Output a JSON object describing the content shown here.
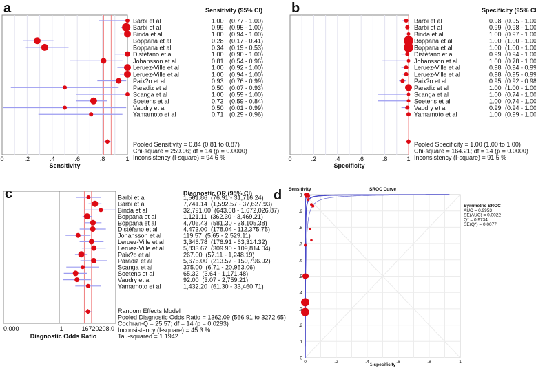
{
  "colors": {
    "marker": "#dd0a14",
    "ci_line": "#9c9cf0",
    "pooled_line": "#f08080",
    "grid": "#e4e4f0",
    "sroc_curve": "#4a4ac8"
  },
  "chart_data": [
    {
      "type": "forest",
      "panel_letter": "a",
      "title": "Sensitivity (95% CI)",
      "xlabel": "Sensitivity",
      "xlim": [
        0,
        1
      ],
      "ticks": [
        "0",
        ".2",
        ".4",
        ".6",
        ".8",
        "1"
      ],
      "studies": [
        {
          "name": "Barbi et al",
          "value": 1.0,
          "low": 0.77,
          "high": 1.0,
          "value_text": "1.00",
          "ci_text": "(0.77 - 1.00)"
        },
        {
          "name": "Barbi et al",
          "value": 0.99,
          "low": 0.95,
          "high": 1.0,
          "value_text": "0.99",
          "ci_text": "(0.95 - 1.00)"
        },
        {
          "name": "Binda et al",
          "value": 1.0,
          "low": 0.94,
          "high": 1.0,
          "value_text": "1.00",
          "ci_text": "(0.94 - 1.00)"
        },
        {
          "name": "Boppana et al",
          "value": 0.28,
          "low": 0.17,
          "high": 0.41,
          "value_text": "0.28",
          "ci_text": "(0.17 - 0.41)"
        },
        {
          "name": "Boppana et al",
          "value": 0.34,
          "low": 0.19,
          "high": 0.53,
          "value_text": "0.34",
          "ci_text": "(0.19 - 0.53)"
        },
        {
          "name": "Distéfano et al",
          "value": 1.0,
          "low": 0.9,
          "high": 1.0,
          "value_text": "1.00",
          "ci_text": "(0.90 - 1.00)"
        },
        {
          "name": "Johansson et al",
          "value": 0.81,
          "low": 0.54,
          "high": 0.96,
          "value_text": "0.81",
          "ci_text": "(0.54 - 0.96)"
        },
        {
          "name": "Leruez-Ville et al",
          "value": 1.0,
          "low": 0.92,
          "high": 1.0,
          "value_text": "1.00",
          "ci_text": "(0.92 - 1.00)"
        },
        {
          "name": "Leruez-Ville et al",
          "value": 1.0,
          "low": 0.94,
          "high": 1.0,
          "value_text": "1.00",
          "ci_text": "(0.94 - 1.00)"
        },
        {
          "name": "Paix?o et al",
          "value": 0.93,
          "low": 0.76,
          "high": 0.99,
          "value_text": "0.93",
          "ci_text": "(0.76 - 0.99)"
        },
        {
          "name": "Paradiz et al",
          "value": 0.5,
          "low": 0.07,
          "high": 0.93,
          "value_text": "0.50",
          "ci_text": "(0.07 - 0.93)"
        },
        {
          "name": "Scanga et al",
          "value": 1.0,
          "low": 0.59,
          "high": 1.0,
          "value_text": "1.00",
          "ci_text": "(0.59 - 1.00)"
        },
        {
          "name": "Soetens et al",
          "value": 0.73,
          "low": 0.59,
          "high": 0.84,
          "value_text": "0.73",
          "ci_text": "(0.59 - 0.84)"
        },
        {
          "name": "Vaudry et al",
          "value": 0.5,
          "low": 0.01,
          "high": 0.99,
          "value_text": "0.50",
          "ci_text": "(0.01 - 0.99)"
        },
        {
          "name": "Yamamoto et al",
          "value": 0.71,
          "low": 0.29,
          "high": 0.96,
          "value_text": "0.71",
          "ci_text": "(0.29 - 0.96)"
        }
      ],
      "pooled": {
        "value": 0.84,
        "low": 0.81,
        "high": 0.87
      },
      "summary": [
        "Pooled Sensitivity = 0.84 (0.81 to 0.87)",
        "Chi-square = 259.96; df =  14 (p = 0.0000)",
        "Inconsistency (I-square) = 94.6 %"
      ]
    },
    {
      "type": "forest",
      "panel_letter": "b",
      "title": "Specificity (95% CI)",
      "xlabel": "Specificity",
      "xlim": [
        0,
        1
      ],
      "ticks": [
        "0",
        ".2",
        ".4",
        ".6",
        ".8",
        "1"
      ],
      "studies": [
        {
          "name": "Barbi et al",
          "value": 0.98,
          "low": 0.95,
          "high": 1.0,
          "value_text": "0.98",
          "ci_text": "(0.95 - 1.00)"
        },
        {
          "name": "Barbi et al",
          "value": 0.99,
          "low": 0.98,
          "high": 1.0,
          "value_text": "0.99",
          "ci_text": "(0.98 - 1.00)"
        },
        {
          "name": "Binda et al",
          "value": 1.0,
          "low": 0.97,
          "high": 1.0,
          "value_text": "1.00",
          "ci_text": "(0.97 - 1.00)"
        },
        {
          "name": "Boppana et al",
          "value": 1.0,
          "low": 1.0,
          "high": 1.0,
          "value_text": "1.00",
          "ci_text": "(1.00 - 1.00)"
        },
        {
          "name": "Boppana et al",
          "value": 1.0,
          "low": 1.0,
          "high": 1.0,
          "value_text": "1.00",
          "ci_text": "(1.00 - 1.00)"
        },
        {
          "name": "Distéfano et al",
          "value": 0.99,
          "low": 0.94,
          "high": 1.0,
          "value_text": "0.99",
          "ci_text": "(0.94 - 1.00)"
        },
        {
          "name": "Johansson et al",
          "value": 1.0,
          "low": 0.78,
          "high": 1.0,
          "value_text": "1.00",
          "ci_text": "(0.78 - 1.00)"
        },
        {
          "name": "Leruez-Ville et al",
          "value": 0.98,
          "low": 0.94,
          "high": 0.99,
          "value_text": "0.98",
          "ci_text": "(0.94 - 0.99)"
        },
        {
          "name": "Leruez-Ville et al",
          "value": 0.98,
          "low": 0.95,
          "high": 0.99,
          "value_text": "0.98",
          "ci_text": "(0.95 - 0.99)"
        },
        {
          "name": "Paix?o et al",
          "value": 0.95,
          "low": 0.92,
          "high": 0.98,
          "value_text": "0.95",
          "ci_text": "(0.92 - 0.98)"
        },
        {
          "name": "Paradiz et al",
          "value": 1.0,
          "low": 1.0,
          "high": 1.0,
          "value_text": "1.00",
          "ci_text": "(1.00 - 1.00)"
        },
        {
          "name": "Scanga et al",
          "value": 1.0,
          "low": 0.74,
          "high": 1.0,
          "value_text": "1.00",
          "ci_text": "(0.74 - 1.00)"
        },
        {
          "name": "Soetens et al",
          "value": 1.0,
          "low": 0.74,
          "high": 1.0,
          "value_text": "1.00",
          "ci_text": "(0.74 - 1.00)"
        },
        {
          "name": "Vaudry et al",
          "value": 0.99,
          "low": 0.94,
          "high": 1.0,
          "value_text": "0.99",
          "ci_text": "(0.94 - 1.00)"
        },
        {
          "name": "Yamamoto et al",
          "value": 1.0,
          "low": 0.99,
          "high": 1.0,
          "value_text": "1.00",
          "ci_text": "(0.99 - 1.00)"
        }
      ],
      "pooled": {
        "value": 1.0,
        "low": 1.0,
        "high": 1.0
      },
      "summary": [
        "Pooled Specificity = 1.00 (1.00 to 1.00)",
        "Chi-square = 164.21; df =  14 (p = 0.0000)",
        "Inconsistency (I-square) = 91.5 %"
      ]
    },
    {
      "type": "forest",
      "panel_letter": "c",
      "title": "Diagnostic OR (95% CI)",
      "xlabel": "Diagnostic Odds Ratio",
      "scale": "log",
      "ticks": [
        "0.000",
        "1",
        "16720208.0"
      ],
      "studies": [
        {
          "name": "Barbi et al",
          "value": 1561.86,
          "low": 76.91,
          "high": 31716.24,
          "value_text": "1,561.86",
          "ci_text": "(76.91 - 31,716.24)"
        },
        {
          "name": "Barbi et al",
          "value": 7741.14,
          "low": 1592.57,
          "high": 37627.93,
          "value_text": "7,741.14",
          "ci_text": "(1,592.57 - 37,627.93)"
        },
        {
          "name": "Binda et al",
          "value": 32791.0,
          "low": 643.08,
          "high": 1672026.87,
          "value_text": "32,791.00",
          "ci_text": "(643.08 - 1,672,026.87)"
        },
        {
          "name": "Boppana et al",
          "value": 1121.11,
          "low": 362.3,
          "high": 3469.21,
          "value_text": "1,121.11",
          "ci_text": "(362.30 - 3,469.21)"
        },
        {
          "name": "Boppana et al",
          "value": 4706.43,
          "low": 581.3,
          "high": 38105.38,
          "value_text": "4,706.43",
          "ci_text": "(581.30 - 38,105.38)"
        },
        {
          "name": "Distéfano et al",
          "value": 4473.0,
          "low": 178.04,
          "high": 112375.75,
          "value_text": "4,473.00",
          "ci_text": "(178.04 - 112,375.75)"
        },
        {
          "name": "Johansson et al",
          "value": 119.57,
          "low": 5.65,
          "high": 2529.11,
          "value_text": "119.57",
          "ci_text": "(5.65 - 2,529.11)"
        },
        {
          "name": "Leruez-Ville et al",
          "value": 3346.78,
          "low": 176.91,
          "high": 63314.32,
          "value_text": "3,346.78",
          "ci_text": "(176.91 - 63,314.32)"
        },
        {
          "name": "Leruez-Ville et al",
          "value": 5833.67,
          "low": 309.9,
          "high": 109814.04,
          "value_text": "5,833.67",
          "ci_text": "(309.90 - 109,814.04)"
        },
        {
          "name": "Paix?o et al",
          "value": 267.0,
          "low": 57.11,
          "high": 1248.19,
          "value_text": "267.00",
          "ci_text": "(57.11 - 1,248.19)"
        },
        {
          "name": "Paradiz et al",
          "value": 5675.0,
          "low": 213.57,
          "high": 150796.92,
          "value_text": "5,675.00",
          "ci_text": "(213.57 - 150,796.92)"
        },
        {
          "name": "Scanga et al",
          "value": 375.0,
          "low": 6.71,
          "high": 20953.06,
          "value_text": "375.00",
          "ci_text": "(6.71 - 20,953.06)"
        },
        {
          "name": "Soetens et al",
          "value": 65.32,
          "low": 3.64,
          "high": 1171.48,
          "value_text": "65.32",
          "ci_text": "(3.64 - 1,171.48)"
        },
        {
          "name": "Vaudry et al",
          "value": 92.0,
          "low": 3.07,
          "high": 2759.21,
          "value_text": "92.00",
          "ci_text": "(3.07 - 2,759.21)"
        },
        {
          "name": "Yamamoto et al",
          "value": 1432.2,
          "low": 61.3,
          "high": 33460.71,
          "value_text": "1,432.20",
          "ci_text": "(61.30 - 33,460.71)"
        }
      ],
      "pooled": {
        "value": 1362.09,
        "low": 566.91,
        "high": 3272.65
      },
      "summary": [
        "Random Effects Model",
        "Pooled Diagnostic Odds Ratio = 1362.09 (566.91 to 3272.65)",
        "Cochran-Q = 25.57; df =  14 (p = 0.0293)",
        "Inconsistency (I-square) = 45.3 %",
        "Tau-squared = 1.1942"
      ]
    },
    {
      "type": "scatter",
      "panel_letter": "d",
      "title": "SROC Curve",
      "xlabel": "1-specificity",
      "ylabel": "Sensitivity",
      "xlim": [
        0,
        1
      ],
      "ylim": [
        0,
        1
      ],
      "xticks": [
        "0",
        ".2",
        ".4",
        ".6",
        ".8",
        "1"
      ],
      "yticks": [
        "0",
        ".1",
        ".2",
        ".3",
        ".4",
        ".5",
        ".6",
        ".7",
        ".8",
        ".9",
        "1"
      ],
      "grid": true,
      "points": [
        [
          0.02,
          1.0
        ],
        [
          0.01,
          0.99
        ],
        [
          0.0,
          1.0
        ],
        [
          0.0,
          0.28
        ],
        [
          0.0,
          0.34
        ],
        [
          0.01,
          1.0
        ],
        [
          0.0,
          0.69
        ],
        [
          0.02,
          0.97
        ],
        [
          0.02,
          0.99
        ],
        [
          0.05,
          0.93
        ],
        [
          0.04,
          0.94
        ],
        [
          0.0,
          0.5
        ],
        [
          0.01,
          0.5
        ],
        [
          0.03,
          0.79
        ],
        [
          0.04,
          0.72
        ]
      ],
      "curve_dor": 1362.09,
      "legend": [
        "Symmetric SROC",
        "AUC = 0.9953",
        "SE(AUC) = 0.0022",
        "Q* = 0.9734",
        "SE(Q*) = 0.0077"
      ]
    }
  ]
}
